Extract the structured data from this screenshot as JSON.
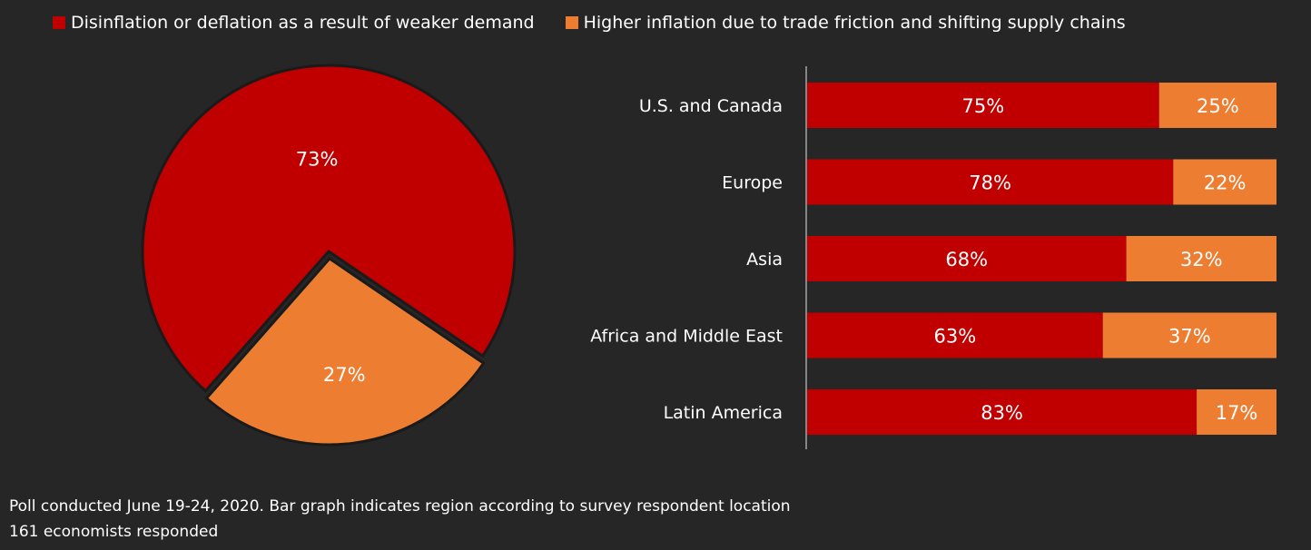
{
  "colors": {
    "background": "#262626",
    "disinflation": "#C00000",
    "inflation": "#ED7D31",
    "axis": "#a6a6a6"
  },
  "legend": [
    {
      "label": "Disinflation or deflation as a result of weaker demand",
      "color": "#C00000"
    },
    {
      "label": "Higher inflation due to trade friction and shifting supply chains",
      "color": "#ED7D31"
    }
  ],
  "chart_data": [
    {
      "type": "pie",
      "labels": [
        "Disinflation or deflation as a result of weaker demand",
        "Higher inflation due to trade friction and shifting supply chains"
      ],
      "values": [
        73,
        27
      ],
      "data_labels": [
        "73%",
        "27%"
      ],
      "colors": [
        "#C00000",
        "#ED7D31"
      ],
      "exploded_slice": 1
    },
    {
      "type": "bar",
      "orientation": "horizontal",
      "stacked": true,
      "categories": [
        "U.S. and Canada",
        "Europe",
        "Asia",
        "Africa and Middle East",
        "Latin America"
      ],
      "series": [
        {
          "name": "Disinflation or deflation as a result of weaker demand",
          "values": [
            75,
            78,
            68,
            63,
            83
          ],
          "color": "#C00000"
        },
        {
          "name": "Higher inflation due to trade friction and shifting supply chains",
          "values": [
            25,
            22,
            32,
            37,
            17
          ],
          "color": "#ED7D31"
        }
      ],
      "xlim": [
        0,
        100
      ],
      "value_suffix": "%",
      "grid": false
    }
  ],
  "notes": {
    "line1": "Poll conducted June 19-24, 2020. Bar graph indicates region according to survey respondent location",
    "line2": "161 economists responded"
  }
}
